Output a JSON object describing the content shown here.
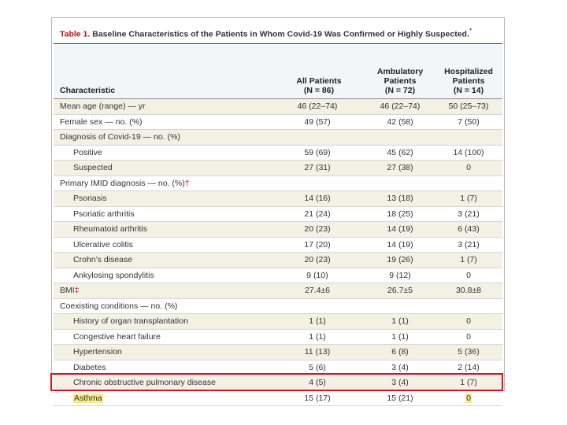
{
  "table": {
    "title_label": "Table 1.",
    "title_text": "Baseline Characteristics of the Patients in Whom Covid-19 Was Confirmed or Highly Suspected.",
    "title_mark": "*",
    "columns": {
      "characteristic": "Characteristic",
      "all_line1": "All Patients",
      "all_line2": "(N = 86)",
      "amb_line1": "Ambulatory",
      "amb_line2": "Patients",
      "amb_line3": "(N = 72)",
      "hos_line1": "Hospitalized",
      "hos_line2": "Patients",
      "hos_line3": "(N = 14)"
    },
    "rows": [
      {
        "label": "Mean age (range) — yr",
        "mark": "",
        "all": "46 (22–74)",
        "amb": "46 (22–74)",
        "hos": "50 (25–73)"
      },
      {
        "label": "Female sex — no. (%)",
        "mark": "",
        "all": "49 (57)",
        "amb": "42 (58)",
        "hos": "7 (50)"
      },
      {
        "label": "Diagnosis of Covid-19 — no. (%)",
        "mark": "",
        "all": "",
        "amb": "",
        "hos": ""
      },
      {
        "label": "Positive",
        "mark": "",
        "all": "59 (69)",
        "amb": "45 (62)",
        "hos": "14 (100)"
      },
      {
        "label": "Suspected",
        "mark": "",
        "all": "27 (31)",
        "amb": "27 (38)",
        "hos": "0"
      },
      {
        "label": "Primary IMID diagnosis — no. (%)",
        "mark": "†",
        "all": "",
        "amb": "",
        "hos": ""
      },
      {
        "label": "Psoriasis",
        "mark": "",
        "all": "14 (16)",
        "amb": "13 (18)",
        "hos": "1 (7)"
      },
      {
        "label": "Psoriatic arthritis",
        "mark": "",
        "all": "21 (24)",
        "amb": "18 (25)",
        "hos": "3 (21)"
      },
      {
        "label": "Rheumatoid arthritis",
        "mark": "",
        "all": "20 (23)",
        "amb": "14 (19)",
        "hos": "6 (43)"
      },
      {
        "label": "Ulcerative colitis",
        "mark": "",
        "all": "17 (20)",
        "amb": "14 (19)",
        "hos": "3 (21)"
      },
      {
        "label": "Crohn’s disease",
        "mark": "",
        "all": "20 (23)",
        "amb": "19 (26)",
        "hos": "1 (7)"
      },
      {
        "label": "Ankylosing spondylitis",
        "mark": "",
        "all": "9 (10)",
        "amb": "9 (12)",
        "hos": "0"
      },
      {
        "label": "BMI",
        "mark": "‡",
        "all": "27.4±6",
        "amb": "26.7±5",
        "hos": "30.8±8"
      },
      {
        "label": "Coexisting conditions — no. (%)",
        "mark": "",
        "all": "",
        "amb": "",
        "hos": ""
      },
      {
        "label": "History of organ transplantation",
        "mark": "",
        "all": "1 (1)",
        "amb": "1 (1)",
        "hos": "0"
      },
      {
        "label": "Congestive heart failure",
        "mark": "",
        "all": "1 (1)",
        "amb": "1 (1)",
        "hos": "0"
      },
      {
        "label": "Hypertension",
        "mark": "",
        "all": "11 (13)",
        "amb": "6 (8)",
        "hos": "5 (36)"
      },
      {
        "label": "Diabetes",
        "mark": "",
        "all": "5 (6)",
        "amb": "3 (4)",
        "hos": "2 (14)"
      },
      {
        "label": "Chronic obstructive pulmonary disease",
        "mark": "",
        "all": "4 (5)",
        "amb": "3 (4)",
        "hos": "1 (7)"
      },
      {
        "label": "Asthma",
        "mark": "",
        "all": "15 (17)",
        "amb": "15 (21)",
        "hos": "0"
      }
    ]
  },
  "colors": {
    "title_accent": "#b5121b",
    "row_shade": "#f3f0e4",
    "highlight_fill": "#f7ec8a",
    "annotation_box": "#e0101c"
  }
}
